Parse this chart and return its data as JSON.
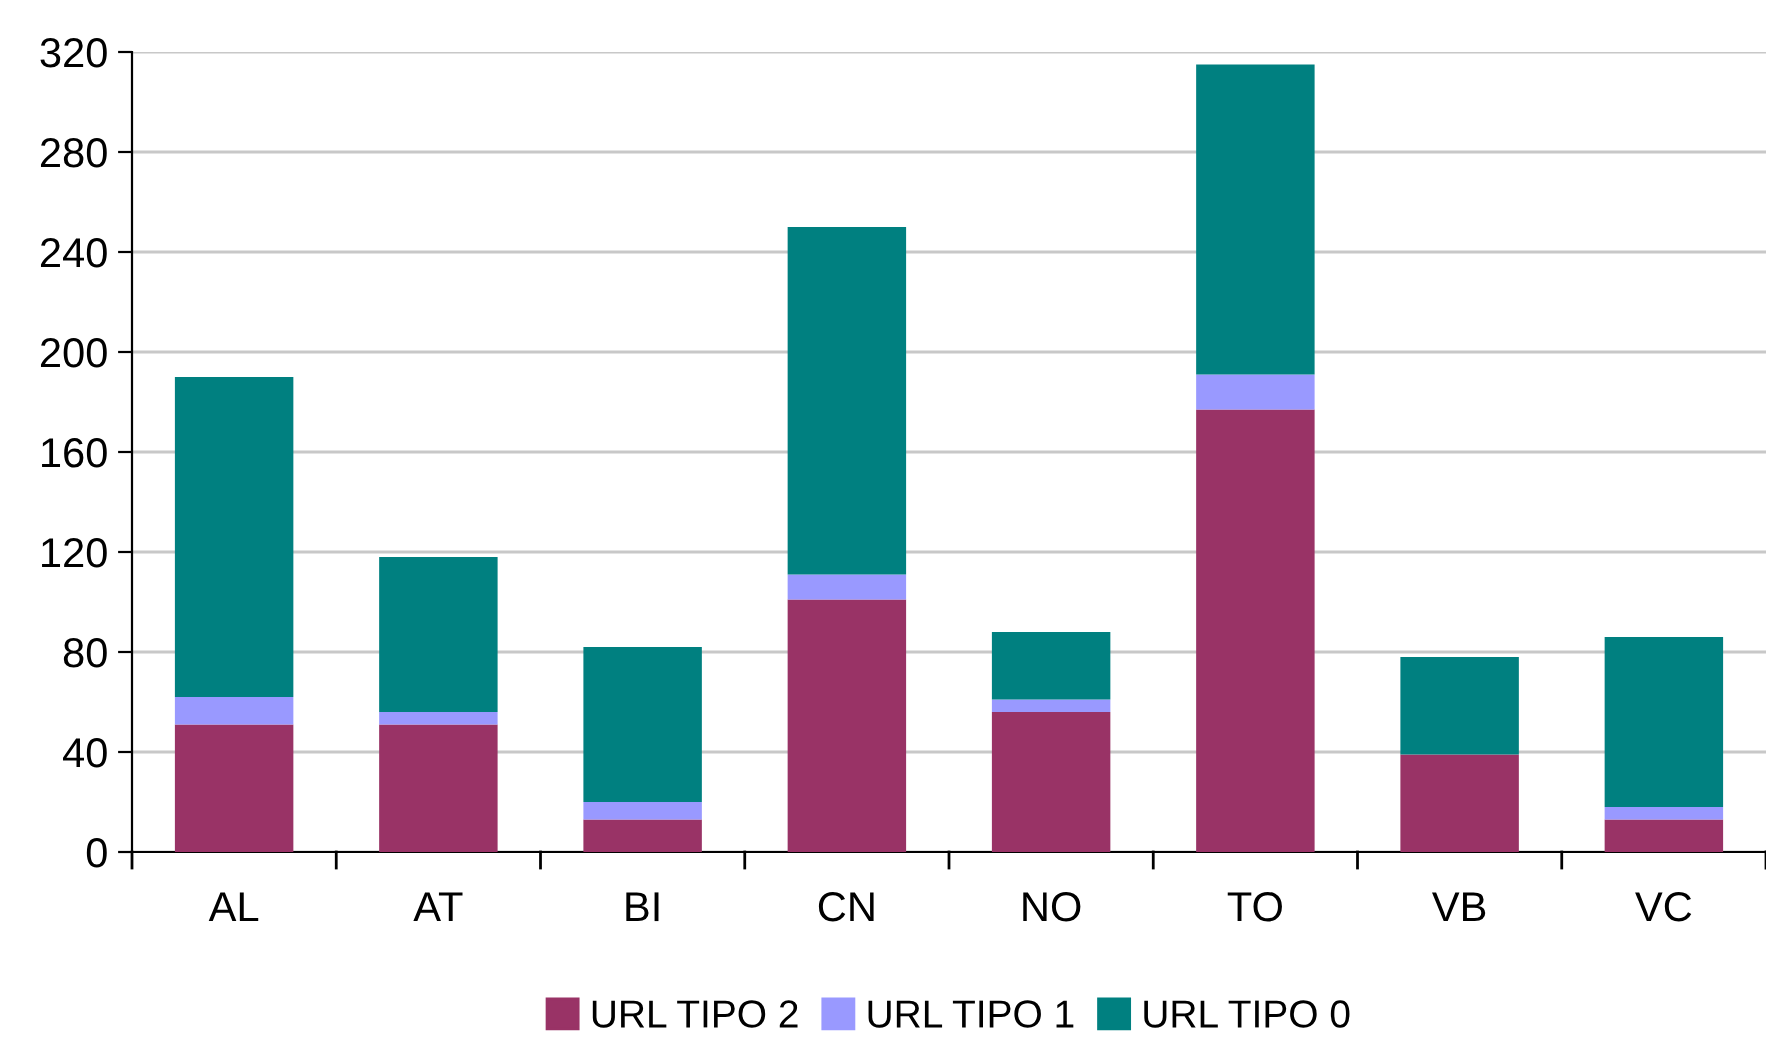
{
  "chart_data": {
    "type": "bar",
    "stacked": true,
    "categories": [
      "AL",
      "AT",
      "BI",
      "CN",
      "NO",
      "TO",
      "VB",
      "VC"
    ],
    "series": [
      {
        "name": "URL TIPO 2",
        "color": "#993366",
        "values": [
          51,
          51,
          13,
          101,
          56,
          177,
          39,
          13
        ]
      },
      {
        "name": "URL TIPO 1",
        "color": "#9999ff",
        "values": [
          11,
          5,
          7,
          10,
          5,
          14,
          0,
          5
        ]
      },
      {
        "name": "URL TIPO 0",
        "color": "#008080",
        "values": [
          128,
          62,
          62,
          139,
          27,
          124,
          39,
          68
        ]
      }
    ],
    "ylim": [
      0,
      320
    ],
    "yticks": [
      0,
      40,
      80,
      120,
      160,
      200,
      240,
      280,
      320
    ],
    "grid": "y",
    "legend": "bottom"
  }
}
